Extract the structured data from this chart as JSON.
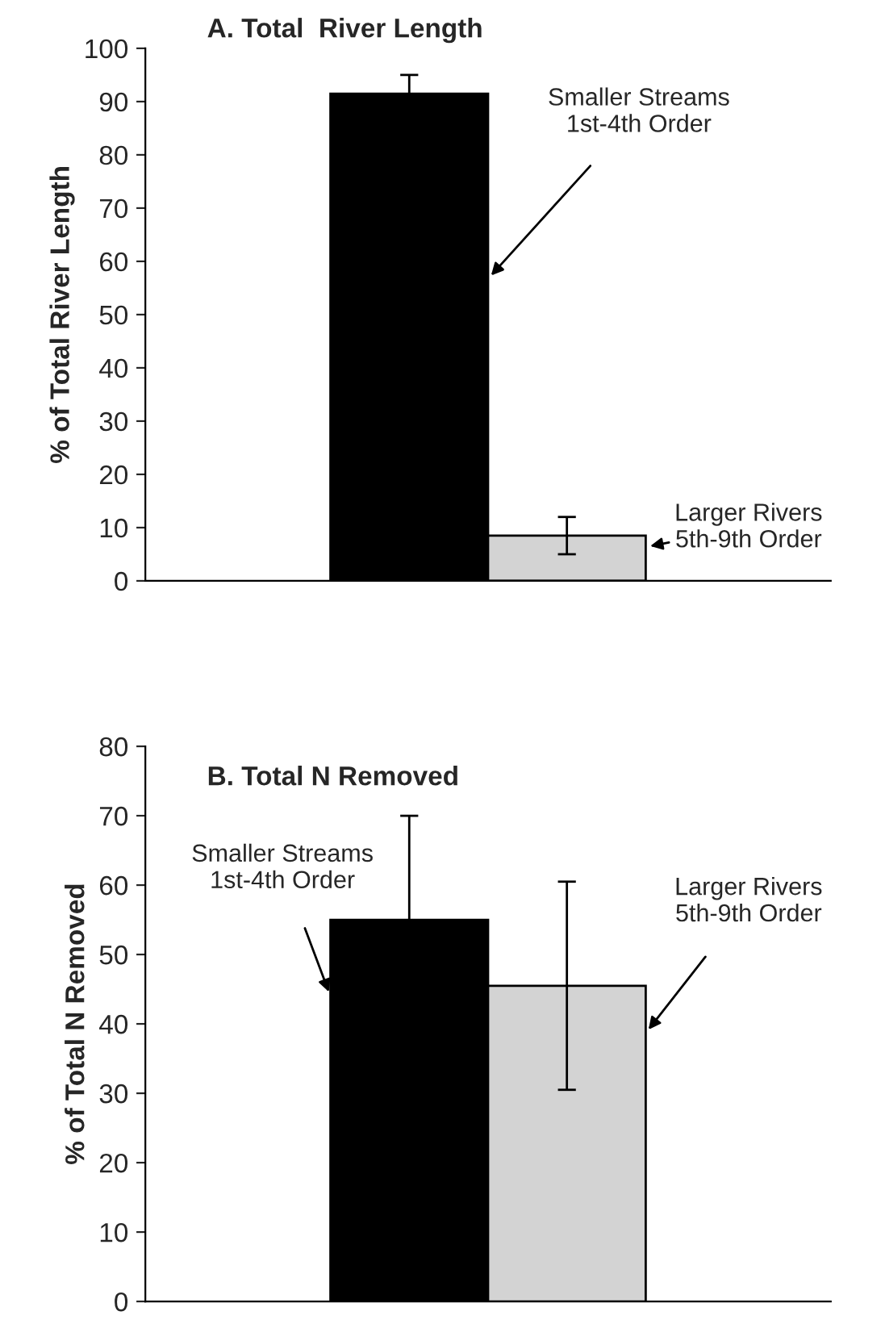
{
  "chart_data": [
    {
      "type": "bar",
      "title": "A. Total  River Length",
      "ylabel": "% of Total River Length",
      "categories": [
        null
      ],
      "ylim": [
        0,
        100
      ],
      "yticks": [
        0,
        10,
        20,
        30,
        40,
        50,
        60,
        70,
        80,
        90,
        100
      ],
      "grid": false,
      "legend": false,
      "series": [
        {
          "name": "Smaller Streams\n1st-4th Order",
          "color": "#000000",
          "values": [
            91.5
          ],
          "errors": [
            3.5
          ]
        },
        {
          "name": "Larger Rivers\n5th-9th Order",
          "color": "#d3d3d3",
          "values": [
            8.5
          ],
          "errors": [
            3.5
          ]
        }
      ]
    },
    {
      "type": "bar",
      "title": "B. Total N Removed",
      "ylabel": "% of Total N Removed",
      "categories": [
        null
      ],
      "ylim": [
        0,
        80
      ],
      "yticks": [
        0,
        10,
        20,
        30,
        40,
        50,
        60,
        70,
        80
      ],
      "grid": false,
      "legend": false,
      "series": [
        {
          "name": "Smaller Streams\n1st-4th Order",
          "color": "#000000",
          "values": [
            55
          ],
          "errors": [
            15
          ]
        },
        {
          "name": "Larger Rivers\n5th-9th Order",
          "color": "#d3d3d3",
          "values": [
            45.5
          ],
          "errors": [
            15
          ]
        }
      ]
    }
  ]
}
